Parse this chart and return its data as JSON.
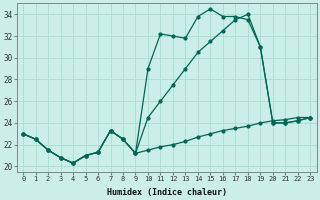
{
  "xlabel": "Humidex (Indice chaleur)",
  "bg_color": "#cceee8",
  "grid_color": "#aaddcc",
  "line_color": "#006655",
  "xlim": [
    -0.5,
    23.5
  ],
  "ylim": [
    19.5,
    35.0
  ],
  "yticks": [
    20,
    22,
    24,
    26,
    28,
    30,
    32,
    34
  ],
  "xticks": [
    0,
    1,
    2,
    3,
    4,
    5,
    6,
    7,
    8,
    9,
    10,
    11,
    12,
    13,
    14,
    15,
    16,
    17,
    18,
    19,
    20,
    21,
    22,
    23
  ],
  "series1_x": [
    0,
    1,
    2,
    3,
    4,
    5,
    6,
    7,
    8,
    9,
    10,
    11,
    12,
    13,
    14,
    15,
    16,
    17,
    18,
    19,
    20,
    21,
    22,
    23
  ],
  "series1_y": [
    23.0,
    22.5,
    21.5,
    20.8,
    20.3,
    21.0,
    21.3,
    23.3,
    22.5,
    21.2,
    21.5,
    21.8,
    22.0,
    22.3,
    22.7,
    23.0,
    23.3,
    23.5,
    23.7,
    24.0,
    24.2,
    24.3,
    24.5,
    24.5
  ],
  "series2_x": [
    0,
    1,
    2,
    3,
    4,
    5,
    6,
    7,
    8,
    9,
    10,
    11,
    12,
    13,
    14,
    15,
    16,
    17,
    18,
    19,
    20,
    21,
    22,
    23
  ],
  "series2_y": [
    23.0,
    22.5,
    21.5,
    20.8,
    20.3,
    21.0,
    21.3,
    23.3,
    22.5,
    21.2,
    24.5,
    26.0,
    27.5,
    29.0,
    30.5,
    31.5,
    32.5,
    33.5,
    34.0,
    31.0,
    24.0,
    24.0,
    24.2,
    24.5
  ],
  "series3_x": [
    0,
    1,
    2,
    3,
    4,
    5,
    6,
    7,
    8,
    9,
    10,
    11,
    12,
    13,
    14,
    15,
    16,
    17,
    18,
    19,
    20,
    21,
    22,
    23
  ],
  "series3_y": [
    23.0,
    22.5,
    21.5,
    20.8,
    20.3,
    21.0,
    21.3,
    23.3,
    22.5,
    21.2,
    29.0,
    32.2,
    32.0,
    31.8,
    33.8,
    34.5,
    33.8,
    33.8,
    33.5,
    31.0,
    24.0,
    24.0,
    24.2,
    24.5
  ]
}
